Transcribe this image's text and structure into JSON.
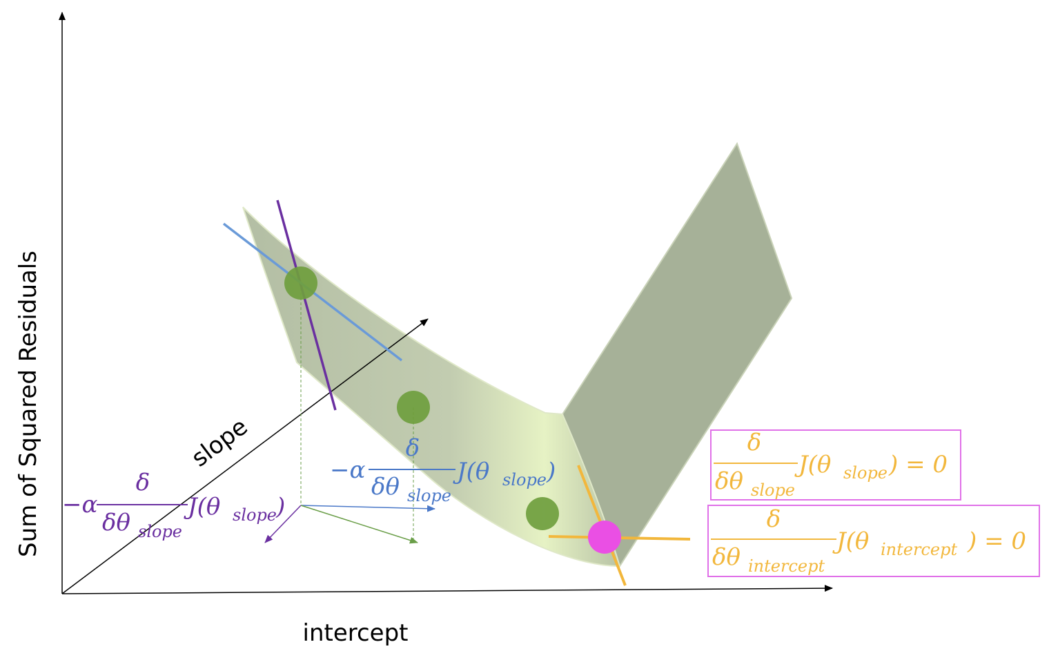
{
  "axes": {
    "y_label": "Sum of Squared Residuals",
    "x_label": "intercept",
    "depth_label": "slope"
  },
  "annotations": {
    "left_step": {
      "minus_alpha": "−α",
      "numerator": "δ",
      "denominator_main": "δθ",
      "denominator_sub": "slope",
      "func_open": "J(θ",
      "func_sub": "slope",
      "func_close": ")"
    },
    "mid_step": {
      "minus_alpha": "−α",
      "numerator": "δ",
      "denominator_main": "δθ",
      "denominator_sub": "slope",
      "func_open": "J(θ",
      "func_sub": "slope",
      "func_close": ")"
    },
    "condition_slope": {
      "numerator": "δ",
      "denominator_main": "δθ",
      "denominator_sub": "slope",
      "func_open": "J(θ",
      "func_sub": "slope",
      "func_close": ") = 0"
    },
    "condition_intercept": {
      "numerator": "δ",
      "denominator_main": "δθ",
      "denominator_sub": "intercept",
      "func_open": "J(θ",
      "func_sub": "intercept",
      "func_close": ") = 0"
    }
  },
  "colors": {
    "surface": "#b5c0a6",
    "plane": "#a6b198",
    "point_green": "#6f9e3e",
    "point_min": "#ea4fe4",
    "purple": "#6a2fa0",
    "blue": "#4a78c8",
    "orange": "#f2b73c",
    "box_border": "#e070e8",
    "green_arrow": "#6a9e48"
  }
}
